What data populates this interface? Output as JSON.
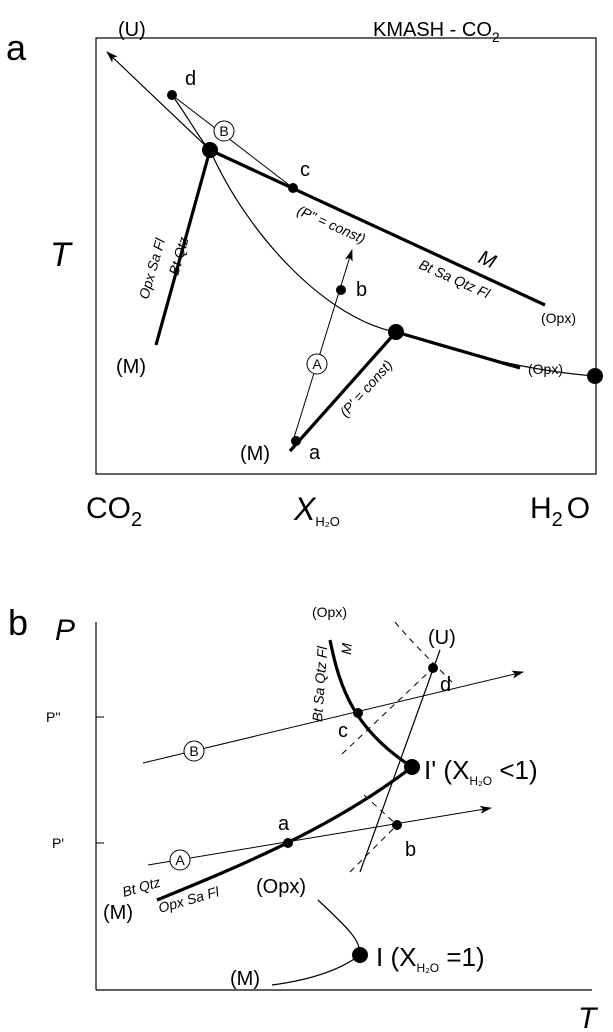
{
  "panel_a": {
    "panel_label": "a",
    "system_label": "KMASH - CO",
    "system_label_sub": "2",
    "y_axis_label": "T",
    "x_axis_left": "CO",
    "x_axis_left_sub": "2",
    "x_axis_right": "H",
    "x_axis_right_sub": "2",
    "x_axis_right_tail": "O",
    "x_axis_var": "X",
    "x_axis_var_sub": "H₂O",
    "labels": {
      "U": "(U)",
      "d": "d",
      "B": "B",
      "c": "c",
      "p2": "(P\" = const)",
      "M_italic": "M",
      "react_upper": "Bt Sa Qtz Fl",
      "opx_upper": "(Opx)",
      "b": "b",
      "opx_sa_fl": "Opx Sa Fl",
      "bt_qtz": "Bt Qtz",
      "M_left": "(M)",
      "A": "A",
      "p1": "(P' = const)",
      "opx_lower": "(Opx)",
      "M_bottom": "(M)",
      "a": "a"
    }
  },
  "panel_b": {
    "panel_label": "b",
    "y_axis_label": "P",
    "x_axis_label": "T",
    "p2_tick": "P''",
    "p1_tick": "P'",
    "labels": {
      "opx_top": "(Opx)",
      "react_top": "Bt Sa Qtz Fl",
      "M_top": "M",
      "U": "(U)",
      "d": "d",
      "c": "c",
      "B": "B",
      "I_prime": "I' (X",
      "I_prime_sub": "H₂O",
      "I_prime_tail": " <1)",
      "a": "a",
      "b": "b",
      "A": "A",
      "bt_qtz": "Bt Qtz",
      "opx_sa_fl": "Opx Sa Fl",
      "M_left": "(M)",
      "opx_lower": "(Opx)",
      "I": "I (X",
      "I_sub": "H₂O",
      "I_tail": " =1)",
      "M_bottom": "(M)"
    }
  }
}
